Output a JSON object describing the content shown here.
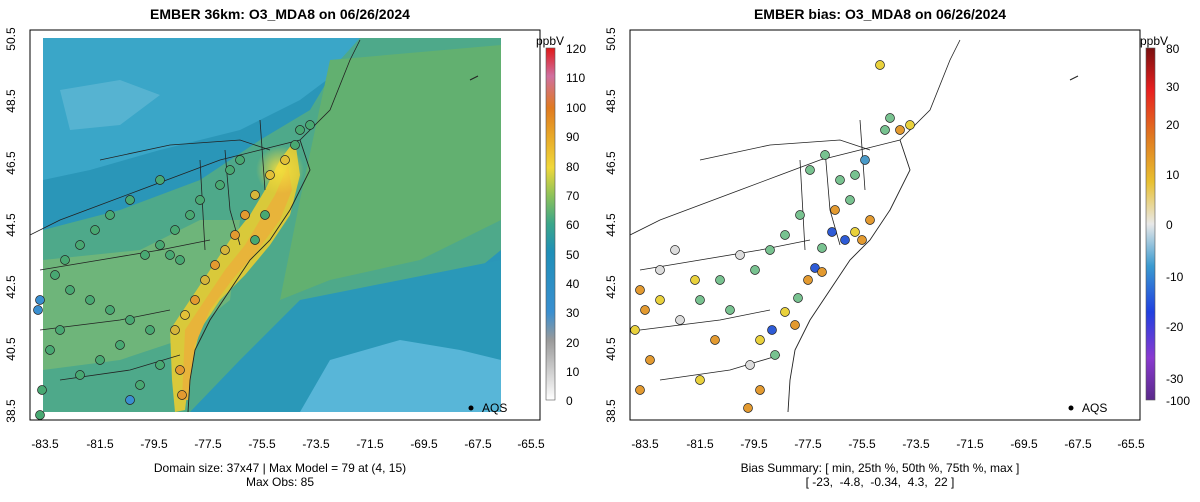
{
  "left": {
    "title": "EMBER 36km: O3_MDA8 on 06/26/2024",
    "colorbar_unit": "ppbV",
    "colorbar_ticks": [
      "0",
      "10",
      "20",
      "30",
      "40",
      "50",
      "60",
      "70",
      "80",
      "90",
      "100",
      "110",
      "120"
    ],
    "legend_label": "AQS",
    "footer_line1": "Domain size: 37x47 | Max Model = 79 at (4, 15)",
    "footer_line2": "Max Obs: 85"
  },
  "right": {
    "title": "EMBER bias: O3_MDA8 on 06/26/2024",
    "colorbar_unit": "ppbV",
    "colorbar_ticks": [
      "-100",
      "-30",
      "-20",
      "-10",
      "0",
      "10",
      "20",
      "30",
      "80"
    ],
    "legend_label": "AQS",
    "footer_line1": "Bias Summary: [ min, 25th %, 50th %, 75th %, max ]",
    "footer_line2": "[ -23,  -4.8,  -0.34,  4.3,  22 ]"
  },
  "axes": {
    "lat_ticks": [
      "38.5",
      "40.5",
      "42.5",
      "44.5",
      "46.5",
      "48.5",
      "50.5"
    ],
    "lon_ticks": [
      "-83.5",
      "-81.5",
      "-79.5",
      "-77.5",
      "-75.5",
      "-73.5",
      "-71.5",
      "-69.5",
      "-67.5",
      "-65.5"
    ]
  },
  "colors": {
    "model_ocean": "#1f8fc0",
    "model_high": "#f2d23a",
    "bias_pos": "#e8a020",
    "bias_neg": "#2e5bd6"
  }
}
